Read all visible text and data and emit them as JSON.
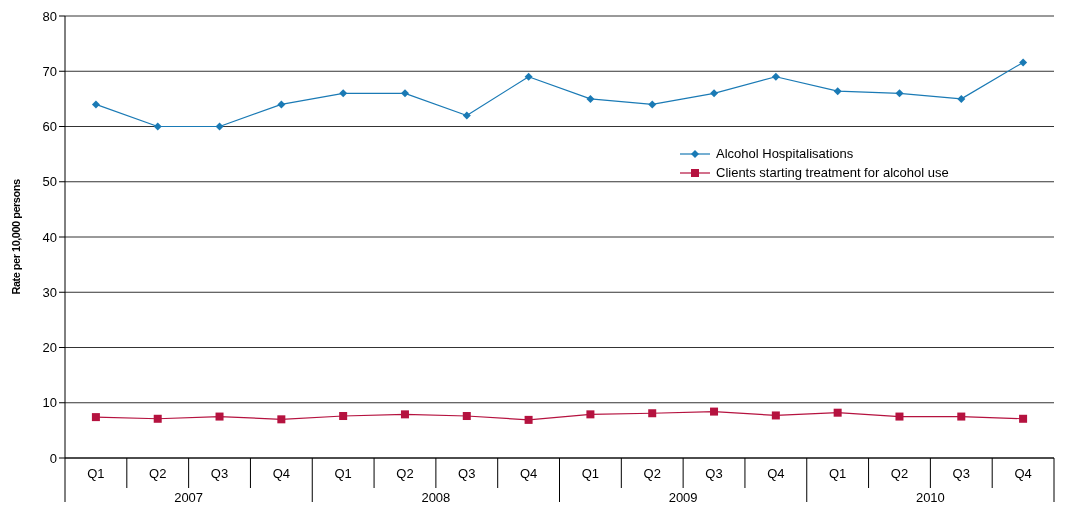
{
  "chart_data": {
    "type": "line",
    "ylabel": "Rate per 10,000 persons",
    "categories": [
      "Q1",
      "Q2",
      "Q3",
      "Q4",
      "Q1",
      "Q2",
      "Q3",
      "Q4",
      "Q1",
      "Q2",
      "Q3",
      "Q4",
      "Q1",
      "Q2",
      "Q3",
      "Q4"
    ],
    "annotations": [
      "2007",
      "2008",
      "2009",
      "2010"
    ],
    "series": [
      {
        "name": "Alcohol Hospitalisations",
        "color": "#1a7ab5",
        "marker": "diamond",
        "values": [
          64,
          60,
          60,
          64,
          66,
          66,
          62,
          69,
          65,
          64,
          66,
          69,
          66.4,
          66,
          65,
          71.6
        ]
      },
      {
        "name": "Clients starting treatment for alcohol use",
        "color": "#b5123f",
        "marker": "square",
        "values": [
          7.4,
          7.1,
          7.5,
          7.0,
          7.6,
          7.9,
          7.6,
          6.9,
          7.9,
          8.1,
          8.4,
          7.7,
          8.2,
          7.5,
          7.5,
          7.1
        ]
      }
    ],
    "ylim": [
      0,
      80
    ],
    "yticks": [
      0,
      10,
      20,
      30,
      40,
      50,
      60,
      70,
      80
    ],
    "grid": "y",
    "legend": "right"
  }
}
